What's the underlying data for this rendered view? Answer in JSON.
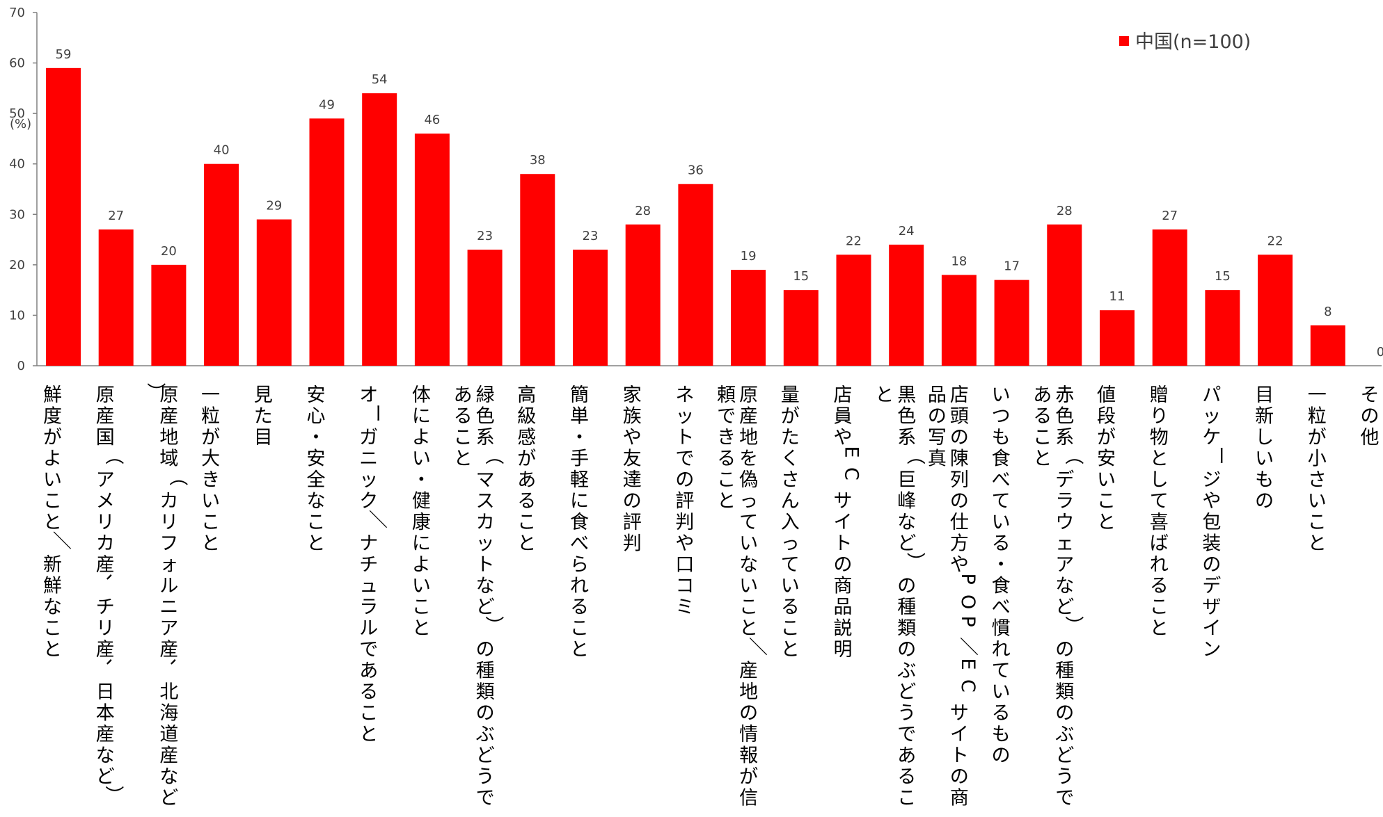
{
  "chart_data": {
    "type": "bar",
    "ylabel": "(%)",
    "ylim": [
      0,
      70
    ],
    "yticks": [
      0,
      10,
      20,
      30,
      40,
      50,
      60,
      70
    ],
    "grid": false,
    "legend_position": "top-right",
    "colors": {
      "bar": "#FF0000",
      "axis": "#808080"
    },
    "categories": [
      "鮮度がよいこと／新鮮なこと",
      "原産国（アメリカ産、チリ産、日本産など）",
      "原産地域（カリフォルニア産、北海道産など）",
      "一粒が大きいこと",
      "見た目",
      "安心・安全なこと",
      "オーガニック／ナチュラルであること",
      "体によい・健康によいこと",
      "緑色系（マスカットなど）の種類のぶどうであること",
      "高級感があること",
      "簡単・手軽に食べられること",
      "家族や友達の評判",
      "ネットでの評判や口コミ",
      "原産地を偽っていないこと／産地の情報が信頼できること",
      "量がたくさん入っていること",
      "店員やECサイトの商品説明",
      "黒色系（巨峰など）の種類のぶどうであること",
      "店頭の陳列の仕方やPOP／ECサイトの商品の写真",
      "いつも食べている・食べ慣れているもの",
      "赤色系（デラウェアなど）の種類のぶどうであること",
      "値段が安いこと",
      "贈り物として喜ばれること",
      "パッケージや包装のデザイン",
      "目新しいもの",
      "一粒が小さいこと",
      "その他"
    ],
    "series": [
      {
        "name": "中国(n=100)",
        "values": [
          59,
          27,
          20,
          40,
          29,
          49,
          54,
          46,
          23,
          38,
          23,
          28,
          36,
          19,
          15,
          22,
          24,
          18,
          17,
          28,
          11,
          27,
          15,
          22,
          8,
          0
        ]
      }
    ]
  }
}
